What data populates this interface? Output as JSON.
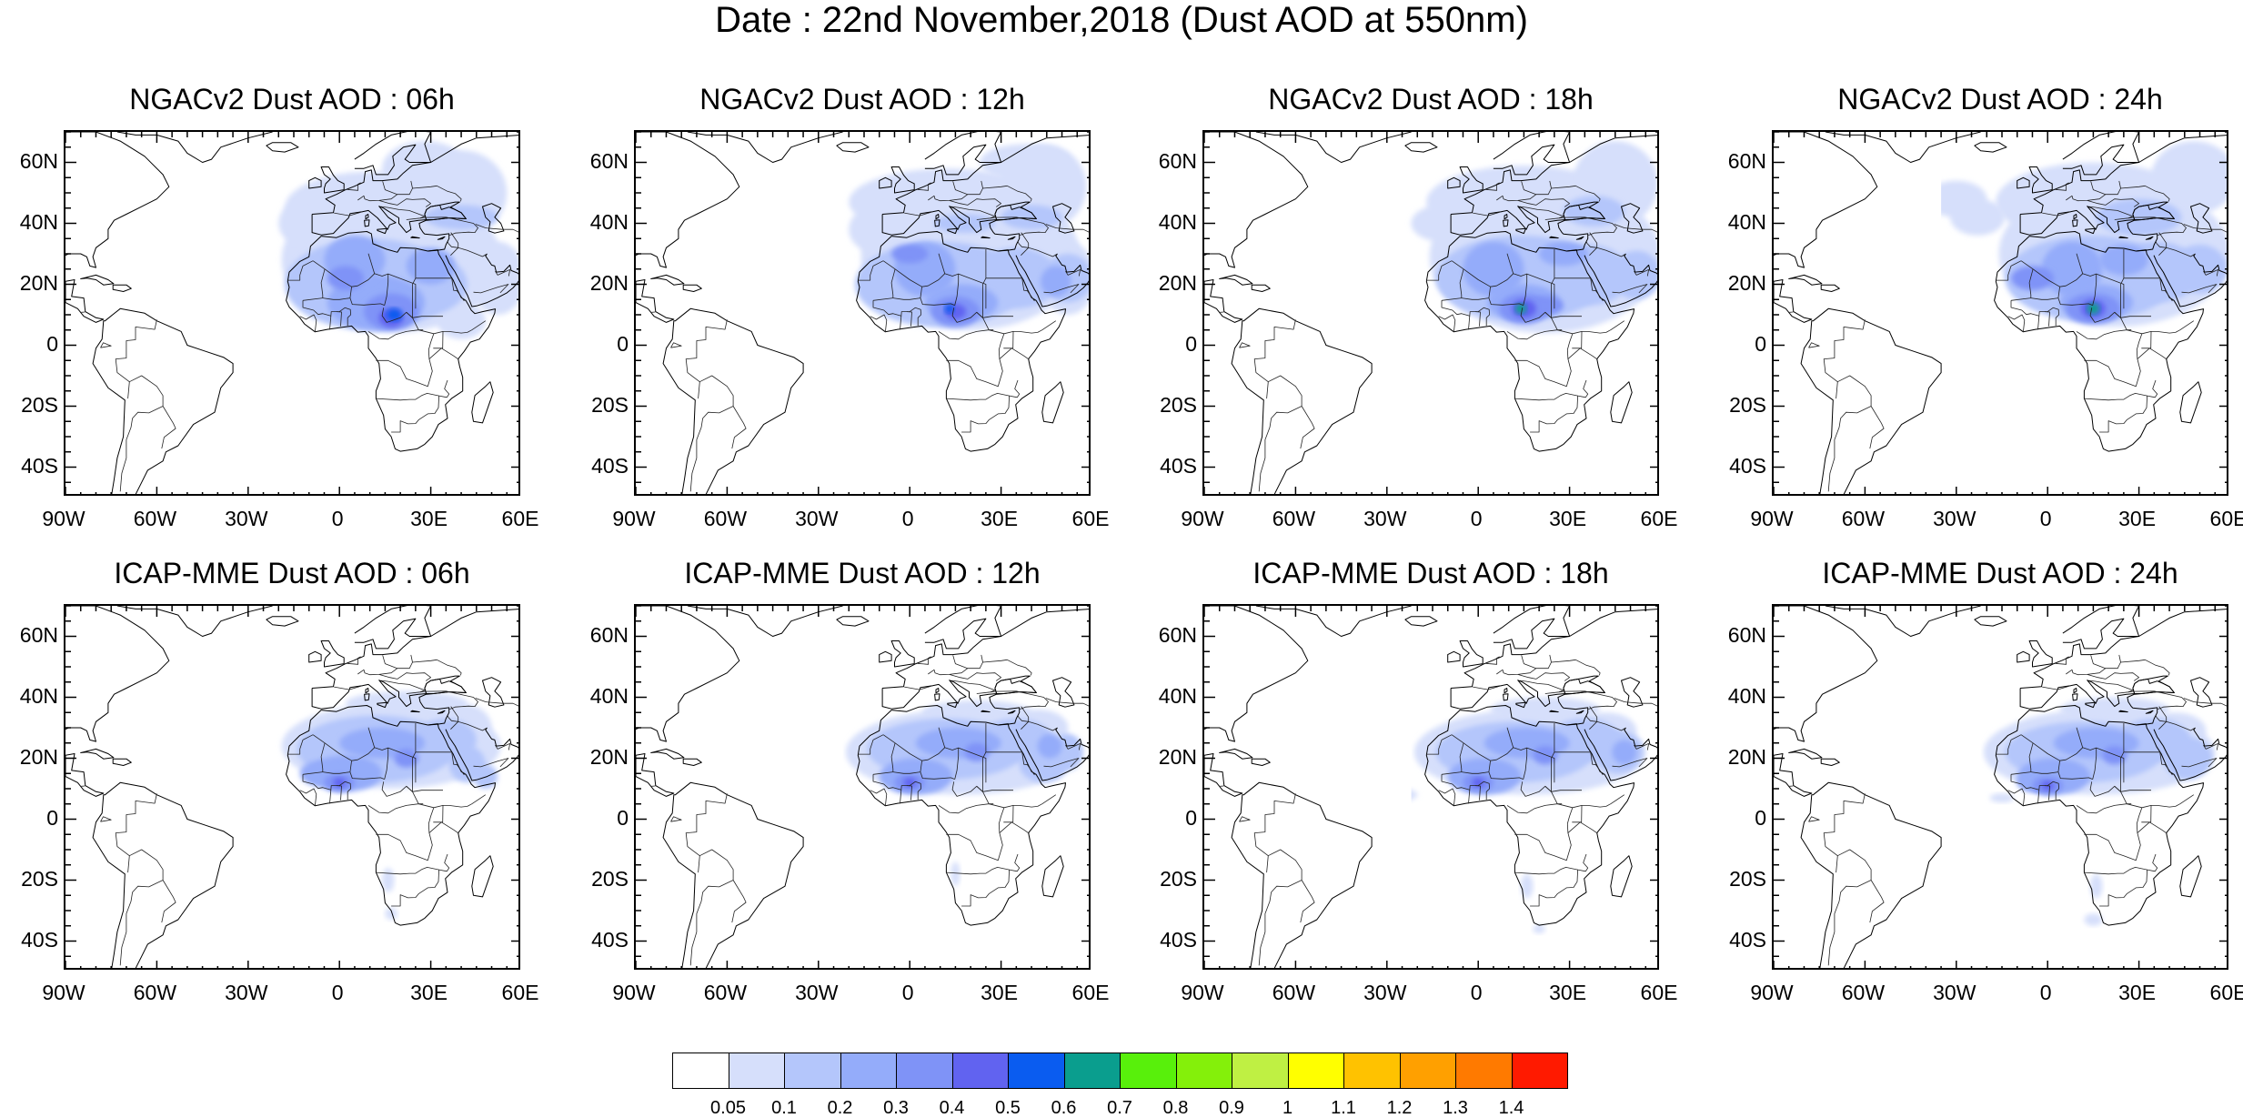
{
  "page_title": "Date : 22nd November,2018 (Dust AOD at 550nm)",
  "lat_ticks": [
    "60N",
    "40N",
    "20N",
    "0",
    "20S",
    "40S"
  ],
  "lon_ticks": [
    "90W",
    "60W",
    "30W",
    "0",
    "30E",
    "60E"
  ],
  "panels": [
    {
      "title": "NGACv2 Dust AOD : 06h",
      "model": "NGACv2",
      "hour": 6
    },
    {
      "title": "NGACv2 Dust AOD : 12h",
      "model": "NGACv2",
      "hour": 12
    },
    {
      "title": "NGACv2 Dust AOD : 18h",
      "model": "NGACv2",
      "hour": 18
    },
    {
      "title": "NGACv2 Dust AOD : 24h",
      "model": "NGACv2",
      "hour": 24
    },
    {
      "title": "ICAP-MME Dust AOD : 06h",
      "model": "ICAP-MME",
      "hour": 6
    },
    {
      "title": "ICAP-MME Dust AOD : 12h",
      "model": "ICAP-MME",
      "hour": 12
    },
    {
      "title": "ICAP-MME Dust AOD : 18h",
      "model": "ICAP-MME",
      "hour": 18
    },
    {
      "title": "ICAP-MME Dust AOD : 24h",
      "model": "ICAP-MME",
      "hour": 24
    }
  ],
  "map_extent": {
    "lon_min": -90,
    "lon_max": 60,
    "lat_min": -50,
    "lat_max": 70
  },
  "colorbar": {
    "labels": [
      "0.05",
      "0.1",
      "0.2",
      "0.3",
      "0.4",
      "0.5",
      "0.6",
      "0.7",
      "0.8",
      "0.9",
      "1",
      "1.1",
      "1.2",
      "1.3",
      "1.4"
    ],
    "colors": [
      "#ffffff",
      "#d6dffb",
      "#b4c6fb",
      "#94acfa",
      "#7f93f7",
      "#6163f0",
      "#0a5cf0",
      "#0a9e8e",
      "#58f00b",
      "#84f00a",
      "#bff043",
      "#ffff00",
      "#ffc200",
      "#ffa000",
      "#ff7a00",
      "#ff1a00"
    ]
  }
}
